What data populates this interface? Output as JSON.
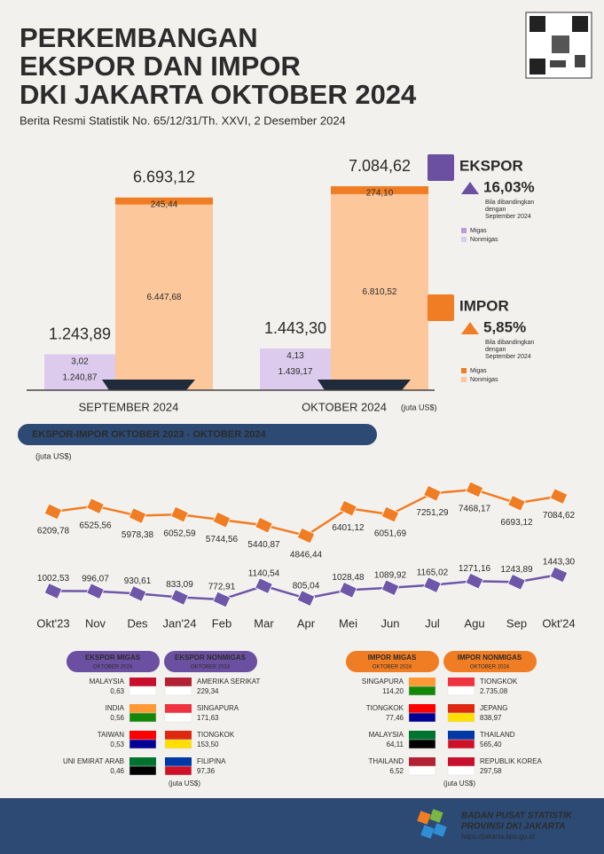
{
  "header": {
    "title": [
      "PERKEMBANGAN",
      "EKSPOR DAN IMPOR",
      "DKI JAKARTA OKTOBER 2024"
    ],
    "subtitle": "Berita Resmi Statistik No. 65/12/31/Th. XXVI, 2 Desember 2024"
  },
  "chart_data": [
    {
      "type": "stacked-bar",
      "categories": [
        "SEPTEMBER 2024",
        "OKTOBER 2024"
      ],
      "unit": "(juta US$)",
      "stacks": [
        {
          "total_values": [
            1243.89,
            1443.3
          ],
          "total_labels": [
            "1.243,89",
            "1.443,30"
          ],
          "series": [
            {
              "color": "#dccbec",
              "values": [
                1240.87,
                1439.17
              ],
              "value_labels": [
                "1.240,87",
                "1.439,17"
              ]
            },
            {
              "color": "#b79dd8",
              "values": [
                3.02,
                4.13
              ],
              "value_labels": [
                "3,02",
                "4,13"
              ]
            }
          ]
        },
        {
          "total_values": [
            6693.12,
            7084.62
          ],
          "total_labels": [
            "6.693,12",
            "7.084,62"
          ],
          "series": [
            {
              "color": "#fcc79b",
              "values": [
                6447.68,
                6810.52
              ],
              "value_labels": [
                "6.447,68",
                "6.810,52"
              ]
            },
            {
              "color": "#f07d23",
              "values": [
                245.44,
                274.1
              ],
              "value_labels": [
                "245,44",
                "274,10"
              ]
            }
          ]
        }
      ]
    },
    {
      "type": "line",
      "title": "EKSPOR-IMPOR OKTOBER 2023 - OKTOBER 2024",
      "unit": "(juta US$)",
      "categories": [
        "Okt'23",
        "Nov",
        "Des",
        "Jan'24",
        "Feb",
        "Mar",
        "Apr",
        "Mei",
        "Jun",
        "Jul",
        "Agu",
        "Sep",
        "Okt'24"
      ],
      "series": [
        {
          "color": "#f07d23",
          "values": [
            6209.78,
            6525.56,
            5978.38,
            6052.59,
            5744.56,
            5440.87,
            4846.44,
            6401.12,
            6051.69,
            7251.29,
            7468.17,
            6693.12,
            7084.62
          ],
          "value_labels": [
            "6209,78",
            "6525,56",
            "5978,38",
            "6052,59",
            "5744,56",
            "5440,87",
            "4846,44",
            "6401,12",
            "6051,69",
            "7251,29",
            "7468,17",
            "6693,12",
            "7084,62"
          ]
        },
        {
          "color": "#6e56a8",
          "values": [
            1002.53,
            996.07,
            930.61,
            833.09,
            772.91,
            1140.54,
            805.04,
            1028.48,
            1089.92,
            1165.02,
            1271.16,
            1243.89,
            1443.3
          ],
          "value_labels": [
            "1002,53",
            "996,07",
            "930,61",
            "833,09",
            "772,91",
            "1140,54",
            "805,04",
            "1028,48",
            "1089,92",
            "1165,02",
            "1271,16",
            "1243,89",
            "1443,30"
          ]
        }
      ]
    }
  ],
  "summary": [
    {
      "label": "EKSPOR",
      "change": "16,03%",
      "note": [
        "Bila dibandingkan",
        "dengan",
        "September 2024"
      ],
      "legend": [
        "Migas",
        "Nonmigas"
      ]
    },
    {
      "label": "IMPOR",
      "change": "5,85%",
      "note": [
        "Bila dibandingkan",
        "dengan",
        "September 2024"
      ],
      "legend": [
        "Migas",
        "Nonmigas"
      ]
    }
  ],
  "partners": [
    {
      "unit": "(juta US$)",
      "tables": [
        {
          "title": "EKSPOR MIGAS",
          "period": "OKTOBER 2024",
          "rows": [
            {
              "country": "MALAYSIA",
              "value": "0,63"
            },
            {
              "country": "INDIA",
              "value": "0,56"
            },
            {
              "country": "TAIWAN",
              "value": "0,53"
            },
            {
              "country": "UNI EMIRAT ARAB",
              "value": "0,46"
            }
          ]
        },
        {
          "title": "EKSPOR NONMIGAS",
          "period": "OKTOBER 2024",
          "rows": [
            {
              "country": "AMERIKA SERIKAT",
              "value": "229,34"
            },
            {
              "country": "SINGAPURA",
              "value": "171,63"
            },
            {
              "country": "TIONGKOK",
              "value": "153,50"
            },
            {
              "country": "FILIPINA",
              "value": "97,36"
            }
          ]
        }
      ]
    },
    {
      "unit": "(juta US$)",
      "tables": [
        {
          "title": "IMPOR MIGAS",
          "period": "OKTOBER 2024",
          "rows": [
            {
              "country": "SINGAPURA",
              "value": "114,20"
            },
            {
              "country": "TIONGKOK",
              "value": "77,46"
            },
            {
              "country": "MALAYSIA",
              "value": "64,11"
            },
            {
              "country": "THAILAND",
              "value": "6,52"
            }
          ]
        },
        {
          "title": "IMPOR NONMIGAS",
          "period": "OKTOBER 2024",
          "rows": [
            {
              "country": "TIONGKOK",
              "value": "2.735,08"
            },
            {
              "country": "JEPANG",
              "value": "838,97"
            },
            {
              "country": "THAILAND",
              "value": "565,40"
            },
            {
              "country": "REPUBLIK KOREA",
              "value": "297,58"
            }
          ]
        }
      ]
    }
  ],
  "footer": {
    "agency": "BADAN PUSAT STATISTIK",
    "region": "PROVINSI DKI JAKARTA",
    "url": "https://jakarta.bps.go.id"
  }
}
